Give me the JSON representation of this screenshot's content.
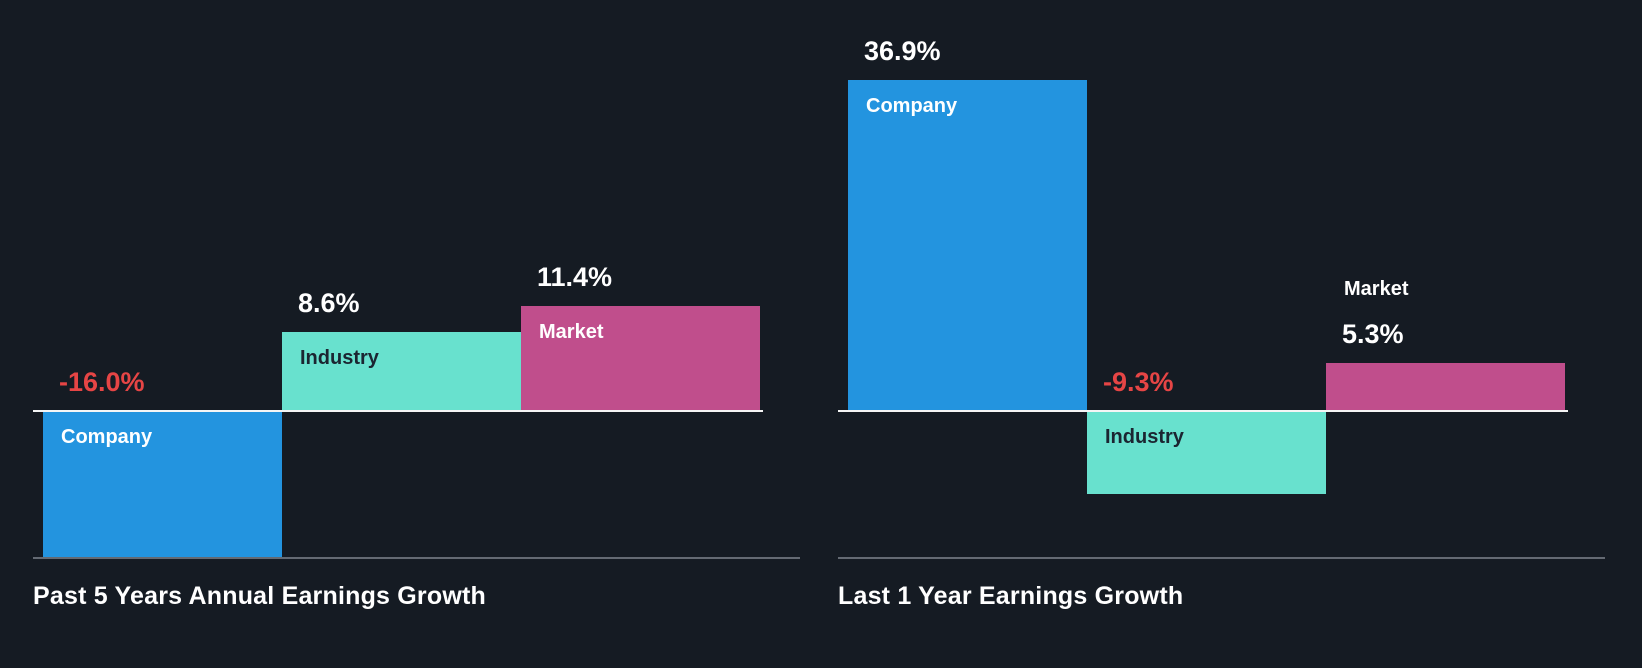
{
  "colors": {
    "background": "#151b23",
    "blue": "#2394df",
    "teal": "#68e1ce",
    "magenta": "#c04e8c",
    "red": "#e64545",
    "white": "#ffffff",
    "dark": "#1b2531",
    "axis_zero": "#f5f5f5",
    "axis_bottom": "#646a73"
  },
  "chart_data": [
    {
      "type": "bar",
      "title": "Past 5 Years Annual Earnings Growth",
      "unit": "%",
      "categories": [
        "Company",
        "Industry",
        "Market"
      ],
      "values": [
        -16.0,
        8.6,
        11.4
      ],
      "legend": "none",
      "grid": "off",
      "bars": [
        {
          "name": "Company",
          "value": -16.0,
          "value_label": "-16.0%",
          "color": "blue",
          "value_color": "red",
          "name_color": "white",
          "name_position": "inside"
        },
        {
          "name": "Industry",
          "value": 8.6,
          "value_label": "8.6%",
          "color": "teal",
          "value_color": "white",
          "name_color": "dark",
          "name_position": "inside"
        },
        {
          "name": "Market",
          "value": 11.4,
          "value_label": "11.4%",
          "color": "magenta",
          "value_color": "white",
          "name_color": "white",
          "name_position": "inside"
        }
      ]
    },
    {
      "type": "bar",
      "title": "Last 1 Year Earnings Growth",
      "unit": "%",
      "categories": [
        "Company",
        "Industry",
        "Market"
      ],
      "values": [
        36.9,
        -9.3,
        5.3
      ],
      "legend": "none",
      "grid": "off",
      "bars": [
        {
          "name": "Company",
          "value": 36.9,
          "value_label": "36.9%",
          "color": "blue",
          "value_color": "white",
          "name_color": "white",
          "name_position": "inside"
        },
        {
          "name": "Industry",
          "value": -9.3,
          "value_label": "-9.3%",
          "color": "teal",
          "value_color": "red",
          "name_color": "dark",
          "name_position": "inside"
        },
        {
          "name": "Market",
          "value": 5.3,
          "value_label": "5.3%",
          "color": "magenta",
          "value_color": "white",
          "name_color": "white",
          "name_position": "above"
        }
      ]
    }
  ]
}
